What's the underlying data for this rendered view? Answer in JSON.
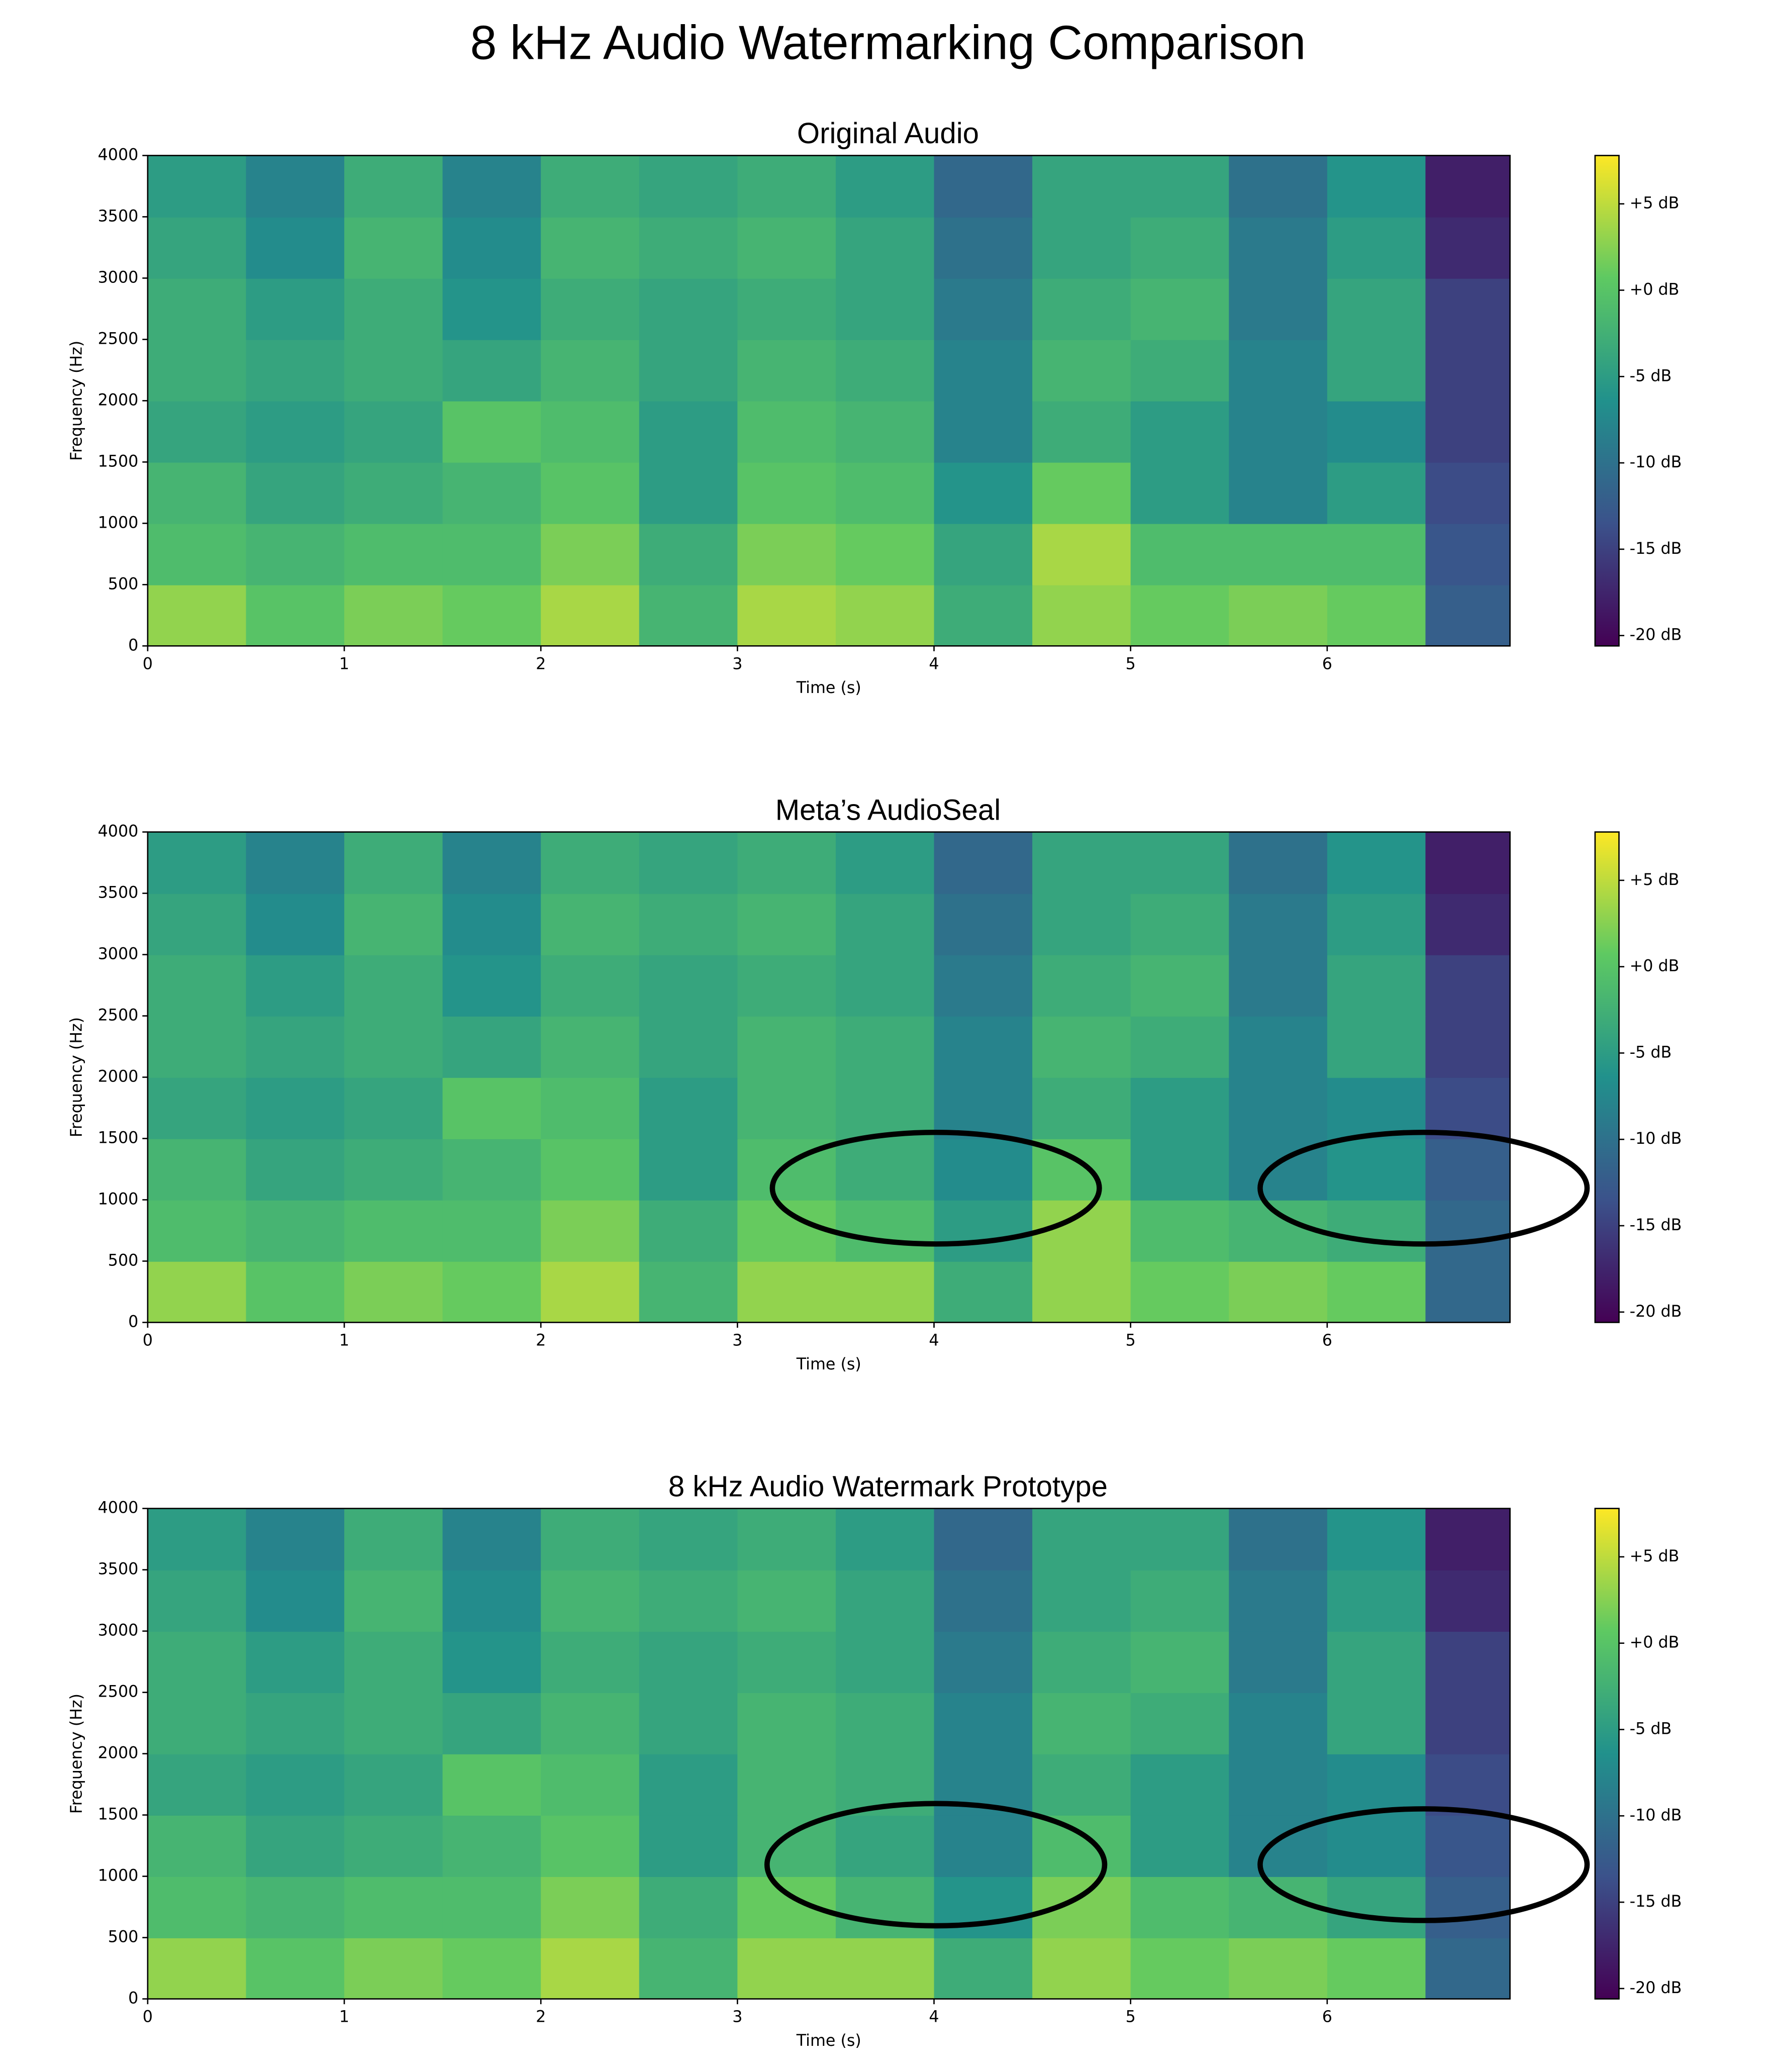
{
  "title": "8 kHz Audio Watermarking Comparison",
  "chart_data": [
    {
      "type": "spectrogram",
      "title": "Original Audio",
      "x_label": "Time (s)",
      "y_label": "Frequency (Hz)",
      "xlim": [
        0,
        6.93
      ],
      "ylim": [
        0,
        4000
      ],
      "xticks": [
        0,
        1,
        2,
        3,
        4,
        5,
        6
      ],
      "yticks": [
        0,
        500,
        1000,
        1500,
        2000,
        2500,
        3000,
        3500,
        4000
      ],
      "x_edges": [
        0,
        0.5,
        1,
        1.5,
        2,
        2.5,
        3,
        3.5,
        4,
        4.5,
        5,
        5.5,
        6,
        6.5,
        6.93
      ],
      "y_edges": [
        0,
        500,
        1000,
        1500,
        2000,
        2500,
        3000,
        3500,
        4000
      ],
      "values": [
        [
          3,
          0,
          2,
          1,
          4,
          -2,
          4,
          3,
          -3,
          3,
          1,
          2,
          1,
          -12
        ],
        [
          -1,
          -2,
          -1,
          -1,
          2,
          -3,
          2,
          1,
          -4,
          4,
          -1,
          -1,
          -1,
          -13
        ],
        [
          -2,
          -4,
          -3,
          -2,
          0,
          -5,
          0,
          -1,
          -6,
          1,
          -5,
          -8,
          -5,
          -14
        ],
        [
          -4,
          -5,
          -4,
          0,
          -1,
          -5,
          -1,
          -2,
          -8,
          -3,
          -5,
          -8,
          -7,
          -15
        ],
        [
          -3,
          -4,
          -3,
          -4,
          -2,
          -4,
          -2,
          -3,
          -8,
          -2,
          -3,
          -8,
          -4,
          -15
        ],
        [
          -3,
          -5,
          -3,
          -6,
          -3,
          -4,
          -3,
          -4,
          -9,
          -3,
          -2,
          -9,
          -4,
          -15
        ],
        [
          -4,
          -7,
          -2,
          -7,
          -2,
          -3,
          -2,
          -4,
          -10,
          -4,
          -3,
          -9,
          -5,
          -17
        ],
        [
          -5,
          -8,
          -3,
          -8,
          -3,
          -4,
          -3,
          -5,
          -11,
          -4,
          -4,
          -10,
          -6,
          -18
        ]
      ],
      "clim": [
        -20.6,
        7.8
      ],
      "cticks": [
        {
          "value": 5,
          "label": "+5 dB"
        },
        {
          "value": 0,
          "label": "+0 dB"
        },
        {
          "value": -5,
          "label": "-5 dB"
        },
        {
          "value": -10,
          "label": "-10 dB"
        },
        {
          "value": -15,
          "label": "-15 dB"
        },
        {
          "value": -20,
          "label": "-20 dB"
        }
      ]
    },
    {
      "type": "spectrogram",
      "title": "Meta’s AudioSeal",
      "x_label": "Time (s)",
      "y_label": "Frequency (Hz)",
      "xlim": [
        0,
        6.93
      ],
      "ylim": [
        0,
        4000
      ],
      "xticks": [
        0,
        1,
        2,
        3,
        4,
        5,
        6
      ],
      "yticks": [
        0,
        500,
        1000,
        1500,
        2000,
        2500,
        3000,
        3500,
        4000
      ],
      "x_edges": [
        0,
        0.5,
        1,
        1.5,
        2,
        2.5,
        3,
        3.5,
        4,
        4.5,
        5,
        5.5,
        6,
        6.5,
        6.93
      ],
      "y_edges": [
        0,
        500,
        1000,
        1500,
        2000,
        2500,
        3000,
        3500,
        4000
      ],
      "values": [
        [
          3,
          0,
          2,
          1,
          4,
          -2,
          3,
          3,
          -3,
          3,
          1,
          2,
          1,
          -11
        ],
        [
          -1,
          -2,
          -1,
          -1,
          2,
          -3,
          1,
          -1,
          -5,
          3,
          -1,
          -2,
          -3,
          -11
        ],
        [
          -2,
          -4,
          -3,
          -2,
          0,
          -5,
          -1,
          -3,
          -7,
          0,
          -5,
          -8,
          -6,
          -12
        ],
        [
          -4,
          -5,
          -4,
          0,
          -1,
          -5,
          -2,
          -3,
          -8,
          -3,
          -5,
          -8,
          -7,
          -14
        ],
        [
          -3,
          -4,
          -3,
          -4,
          -2,
          -4,
          -2,
          -3,
          -8,
          -2,
          -3,
          -8,
          -4,
          -15
        ],
        [
          -3,
          -5,
          -3,
          -6,
          -3,
          -4,
          -3,
          -4,
          -9,
          -3,
          -2,
          -9,
          -4,
          -15
        ],
        [
          -4,
          -7,
          -2,
          -7,
          -2,
          -3,
          -2,
          -4,
          -10,
          -4,
          -3,
          -9,
          -5,
          -17
        ],
        [
          -5,
          -8,
          -3,
          -8,
          -3,
          -4,
          -3,
          -5,
          -11,
          -4,
          -4,
          -10,
          -6,
          -18
        ]
      ],
      "clim": [
        -20.6,
        7.8
      ],
      "cticks": [
        {
          "value": 5,
          "label": "+5 dB"
        },
        {
          "value": 0,
          "label": "+0 dB"
        },
        {
          "value": -5,
          "label": "-5 dB"
        },
        {
          "value": -10,
          "label": "-10 dB"
        },
        {
          "value": -15,
          "label": "-15 dB"
        },
        {
          "value": -20,
          "label": "-20 dB"
        }
      ]
    },
    {
      "type": "spectrogram",
      "title": "8 kHz Audio Watermark Prototype",
      "x_label": "Time (s)",
      "y_label": "Frequency (Hz)",
      "xlim": [
        0,
        6.93
      ],
      "ylim": [
        0,
        4000
      ],
      "xticks": [
        0,
        1,
        2,
        3,
        4,
        5,
        6
      ],
      "yticks": [
        0,
        500,
        1000,
        1500,
        2000,
        2500,
        3000,
        3500,
        4000
      ],
      "x_edges": [
        0,
        0.5,
        1,
        1.5,
        2,
        2.5,
        3,
        3.5,
        4,
        4.5,
        5,
        5.5,
        6,
        6.5,
        6.93
      ],
      "y_edges": [
        0,
        500,
        1000,
        1500,
        2000,
        2500,
        3000,
        3500,
        4000
      ],
      "values": [
        [
          3,
          0,
          2,
          1,
          4,
          -2,
          3,
          3,
          -3,
          3,
          1,
          2,
          1,
          -11
        ],
        [
          -1,
          -2,
          -1,
          -1,
          2,
          -3,
          1,
          -2,
          -6,
          2,
          -1,
          -2,
          -4,
          -12
        ],
        [
          -2,
          -4,
          -3,
          -2,
          0,
          -5,
          -2,
          -4,
          -8,
          -1,
          -5,
          -8,
          -7,
          -13
        ],
        [
          -4,
          -5,
          -4,
          0,
          -1,
          -5,
          -2,
          -3,
          -8,
          -3,
          -5,
          -8,
          -7,
          -14
        ],
        [
          -3,
          -4,
          -3,
          -4,
          -2,
          -4,
          -2,
          -3,
          -8,
          -2,
          -3,
          -8,
          -4,
          -15
        ],
        [
          -3,
          -5,
          -3,
          -6,
          -3,
          -4,
          -3,
          -4,
          -9,
          -3,
          -2,
          -9,
          -4,
          -15
        ],
        [
          -4,
          -7,
          -2,
          -7,
          -2,
          -3,
          -2,
          -4,
          -10,
          -4,
          -3,
          -9,
          -5,
          -17
        ],
        [
          -5,
          -8,
          -3,
          -8,
          -3,
          -4,
          -3,
          -5,
          -11,
          -4,
          -4,
          -10,
          -6,
          -18
        ]
      ],
      "clim": [
        -20.6,
        7.8
      ],
      "cticks": [
        {
          "value": 5,
          "label": "+5 dB"
        },
        {
          "value": 0,
          "label": "+0 dB"
        },
        {
          "value": -5,
          "label": "-5 dB"
        },
        {
          "value": -10,
          "label": "-10 dB"
        },
        {
          "value": -15,
          "label": "-15 dB"
        },
        {
          "value": -20,
          "label": "-20 dB"
        }
      ]
    }
  ]
}
